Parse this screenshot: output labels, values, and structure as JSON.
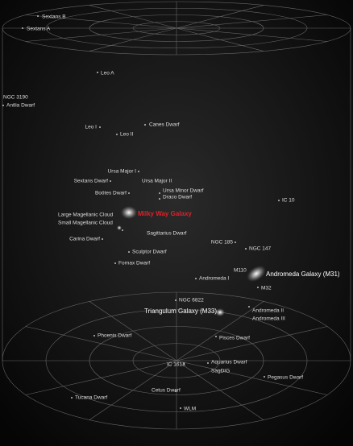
{
  "labels": [
    "Sextans B",
    "Sextans A",
    "Leo A",
    "NGC 3190",
    "Antlia Dwarf",
    "Leo I",
    "Leo II",
    "Canes Dwarf",
    "Ursa Major I",
    "Sextans Dwarf",
    "Ursa Major II",
    "Ursa Minor Dwarf",
    "Draco Dwarf",
    "Boötes Dwarf",
    "IC 10",
    "Milky Way Galaxy",
    "Large Magellanic Cloud",
    "Small Magellanic Cloud",
    "Sagittarius Dwarf",
    "Carina Dwarf",
    "NGC 185",
    "NGC 147",
    "Sculptor Dwarf",
    "Fornax Dwarf",
    "M110",
    "Andromeda Galaxy (M31)",
    "Andromeda I",
    "M32",
    "NGC 6822",
    "Triangulum Galaxy (M33)",
    "Andromeda II",
    "Andromeda III",
    "Phoenix Dwarf",
    "Pisces Dwarf",
    "IC 1613",
    "Aquarius Dwarf",
    "SagDIG",
    "Pegasus Dwarf",
    "Tucana Dwarf",
    "Cetus Dwarf",
    "WLM"
  ]
}
